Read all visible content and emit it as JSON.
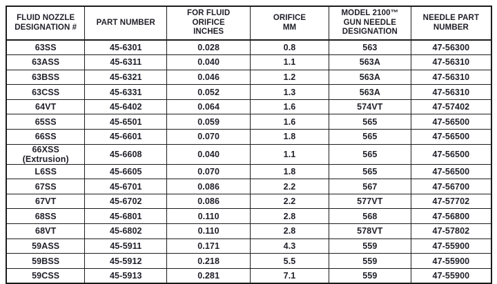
{
  "colors": {
    "border": "#1a1a1a",
    "text": "#20202a",
    "background": "#ffffff"
  },
  "table": {
    "headers": [
      "FLUID NOZZLE\nDESIGNATION #",
      "PART NUMBER",
      "FOR FLUID\nORIFICE\nINCHES",
      "ORIFICE\nMM",
      "MODEL 2100™\nGUN NEEDLE\nDESIGNATION",
      "NEEDLE PART\nNUMBER"
    ],
    "rows": [
      [
        "63SS",
        "45-6301",
        "0.028",
        "0.8",
        "563",
        "47-56300"
      ],
      [
        "63ASS",
        "45-6311",
        "0.040",
        "1.1",
        "563A",
        "47-56310"
      ],
      [
        "63BSS",
        "45-6321",
        "0.046",
        "1.2",
        "563A",
        "47-56310"
      ],
      [
        "63CSS",
        "45-6331",
        "0.052",
        "1.3",
        "563A",
        "47-56310"
      ],
      [
        "64VT",
        "45-6402",
        "0.064",
        "1.6",
        "574VT",
        "47-57402"
      ],
      [
        "65SS",
        "45-6501",
        "0.059",
        "1.6",
        "565",
        "47-56500"
      ],
      [
        "66SS",
        "45-6601",
        "0.070",
        "1.8",
        "565",
        "47-56500"
      ],
      [
        "66XSS (Extrusion)",
        "45-6608",
        "0.040",
        "1.1",
        "565",
        "47-56500"
      ],
      [
        "L6SS",
        "45-6605",
        "0.070",
        "1.8",
        "565",
        "47-56500"
      ],
      [
        "67SS",
        "45-6701",
        "0.086",
        "2.2",
        "567",
        "47-56700"
      ],
      [
        "67VT",
        "45-6702",
        "0.086",
        "2.2",
        "577VT",
        "47-57702"
      ],
      [
        "68SS",
        "45-6801",
        "0.110",
        "2.8",
        "568",
        "47-56800"
      ],
      [
        "68VT",
        "45-6802",
        "0.110",
        "2.8",
        "578VT",
        "47-57802"
      ],
      [
        "59ASS",
        "45-5911",
        "0.171",
        "4.3",
        "559",
        "47-55900"
      ],
      [
        "59BSS",
        "45-5912",
        "0.218",
        "5.5",
        "559",
        "47-55900"
      ],
      [
        "59CSS",
        "45-5913",
        "0.281",
        "7.1",
        "559",
        "47-55900"
      ]
    ]
  }
}
